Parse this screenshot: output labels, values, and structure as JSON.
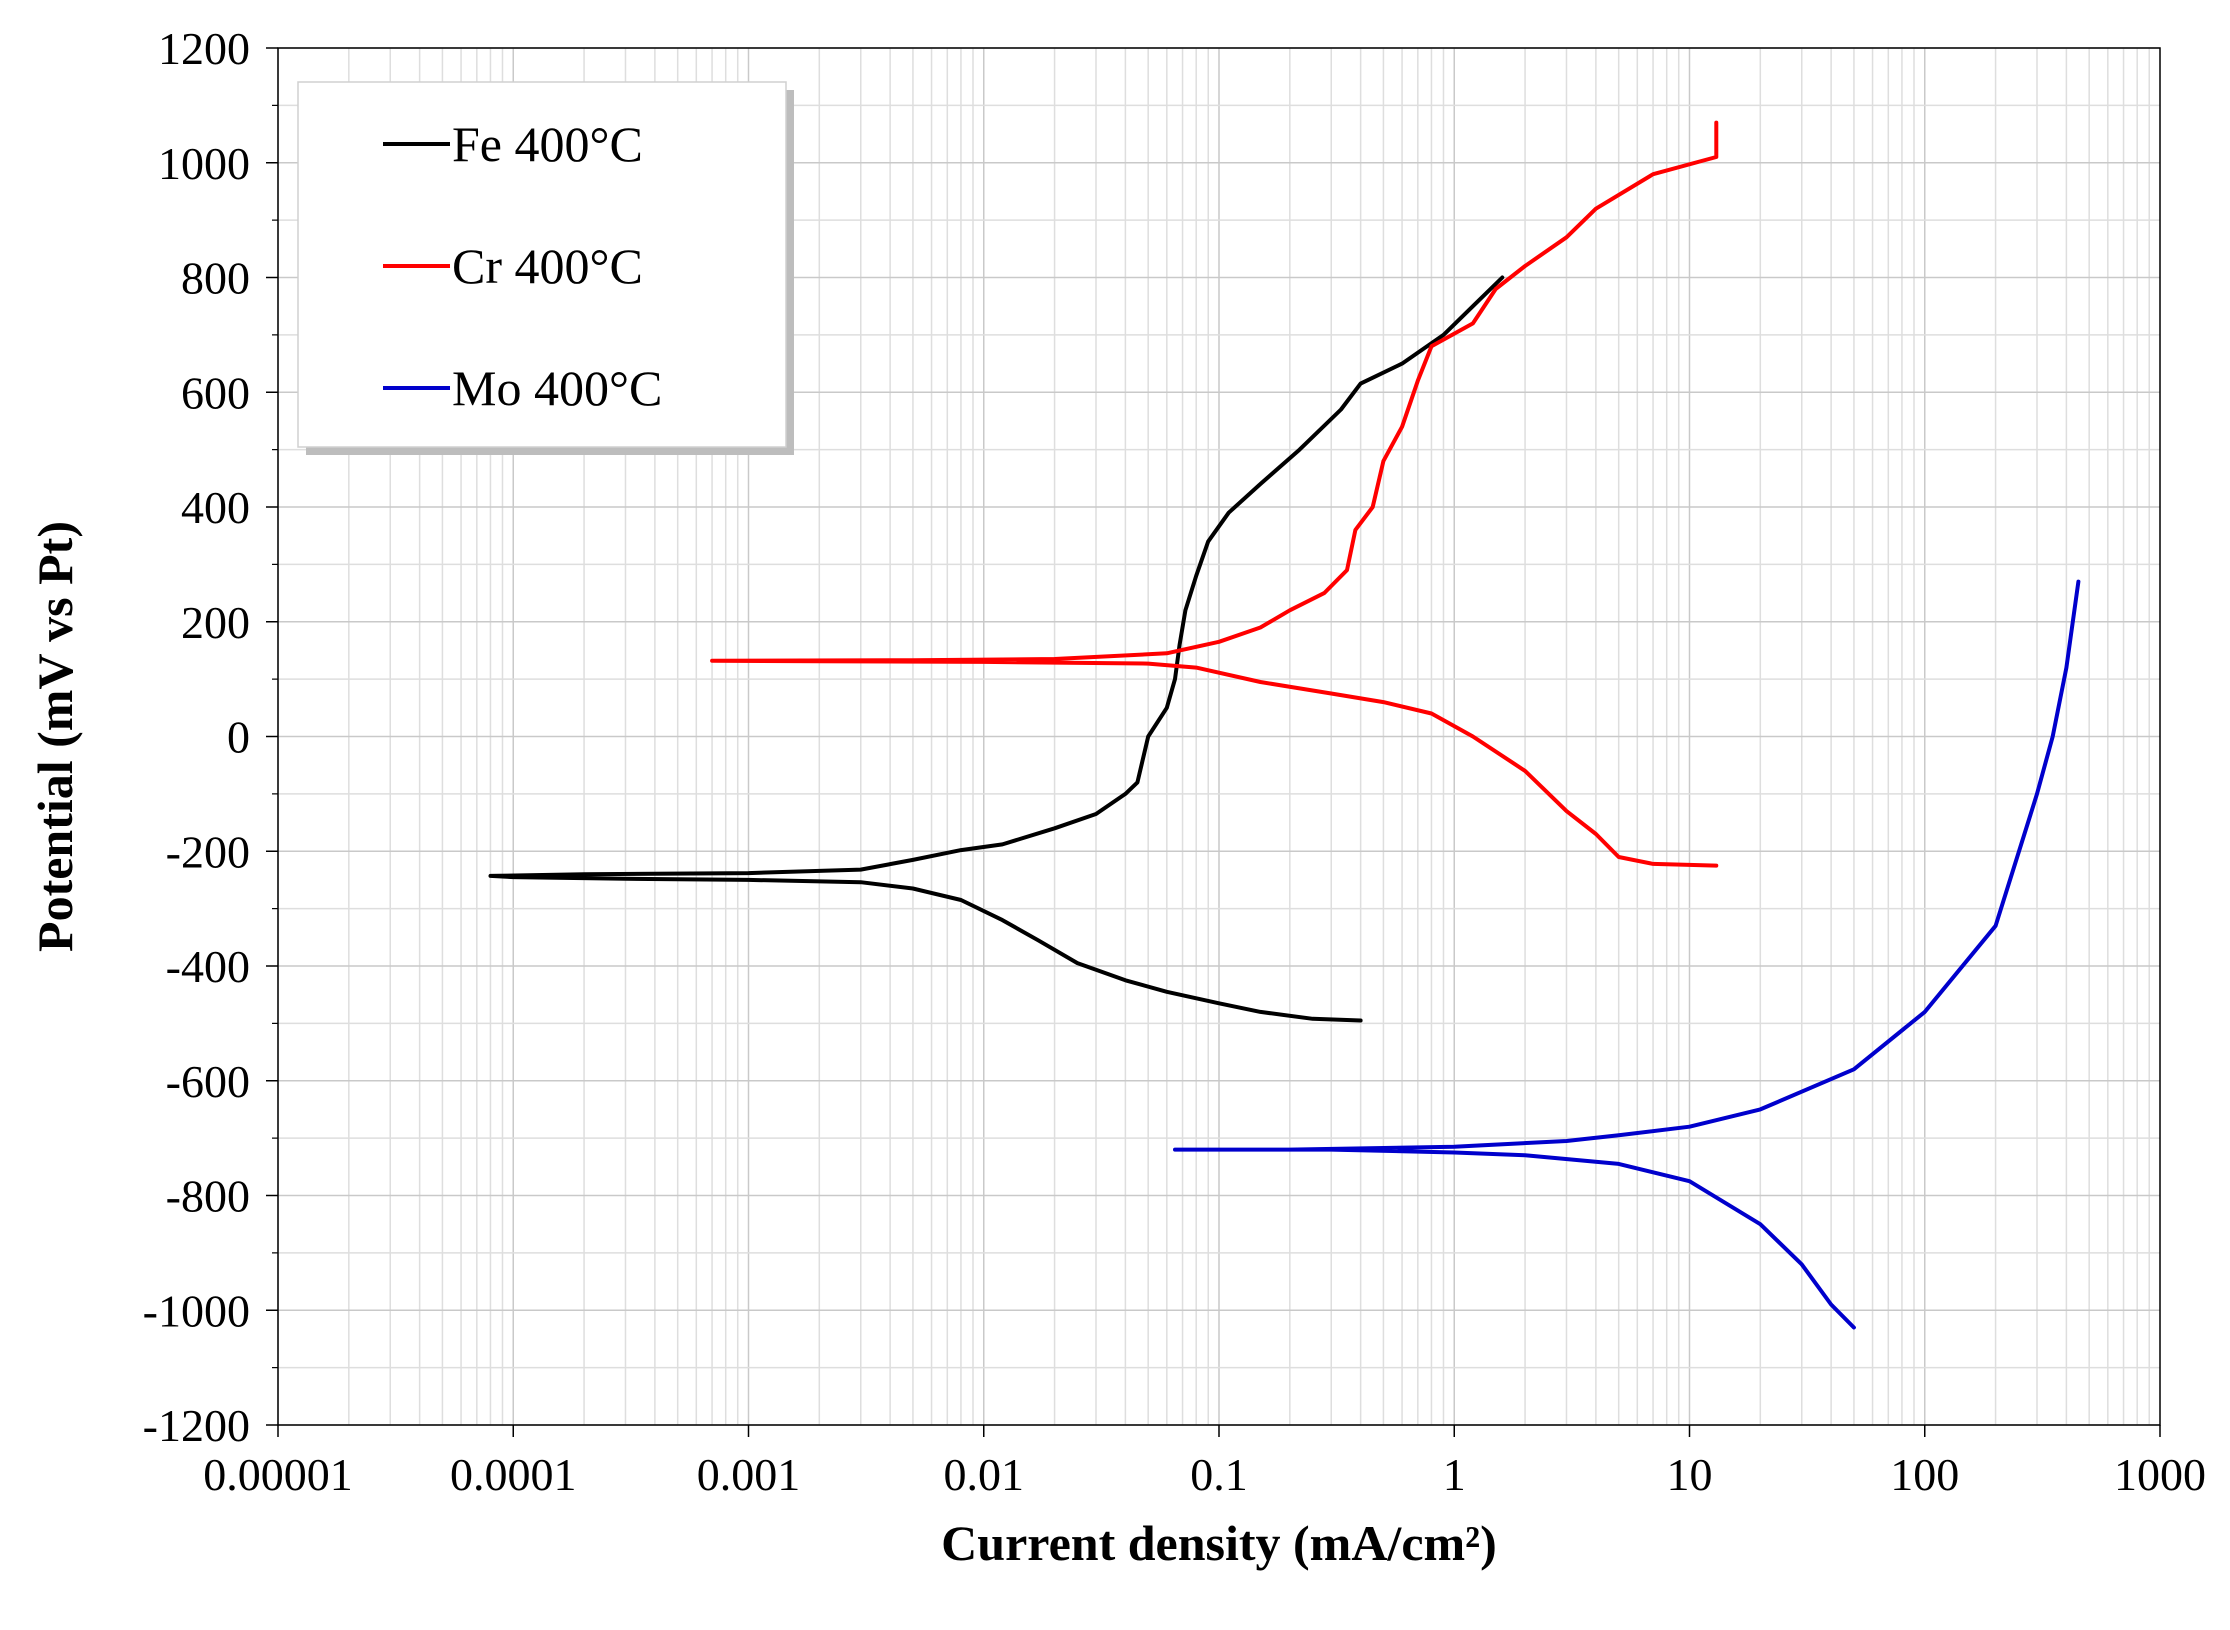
{
  "chart_data": {
    "type": "line",
    "title": "",
    "xlabel": "Current density (mA/cm²)",
    "ylabel": "Potential (mV vs Pt)",
    "x_scale": "log",
    "xlim": [
      1e-05,
      1000
    ],
    "ylim": [
      -1200,
      1200
    ],
    "x_ticks": [
      "0.00001",
      "0.0001",
      "0.001",
      "0.01",
      "0.1",
      "1",
      "10",
      "100",
      "1000"
    ],
    "y_ticks": [
      "-1200",
      "-1000",
      "-800",
      "-600",
      "-400",
      "-200",
      "0",
      "200",
      "400",
      "600",
      "800",
      "1000",
      "1200"
    ],
    "grid": true,
    "legend_position": "top-left",
    "series": [
      {
        "name": "Fe 400°C",
        "color": "#000000",
        "points": [
          [
            0.4,
            -495
          ],
          [
            0.25,
            -492
          ],
          [
            0.15,
            -480
          ],
          [
            0.1,
            -465
          ],
          [
            0.06,
            -445
          ],
          [
            0.04,
            -425
          ],
          [
            0.025,
            -395
          ],
          [
            0.017,
            -355
          ],
          [
            0.012,
            -320
          ],
          [
            0.008,
            -285
          ],
          [
            0.005,
            -265
          ],
          [
            0.003,
            -254
          ],
          [
            0.001,
            -250
          ],
          [
            0.0003,
            -248
          ],
          [
            0.0001,
            -245
          ],
          [
            8e-05,
            -243
          ],
          [
            0.0002,
            -240
          ],
          [
            0.001,
            -238
          ],
          [
            0.003,
            -232
          ],
          [
            0.005,
            -215
          ],
          [
            0.008,
            -198
          ],
          [
            0.012,
            -188
          ],
          [
            0.02,
            -160
          ],
          [
            0.03,
            -135
          ],
          [
            0.04,
            -100
          ],
          [
            0.045,
            -80
          ],
          [
            0.05,
            0
          ],
          [
            0.06,
            50
          ],
          [
            0.065,
            100
          ],
          [
            0.068,
            160
          ],
          [
            0.072,
            220
          ],
          [
            0.08,
            280
          ],
          [
            0.09,
            340
          ],
          [
            0.11,
            390
          ],
          [
            0.15,
            440
          ],
          [
            0.22,
            500
          ],
          [
            0.33,
            570
          ],
          [
            0.4,
            615
          ],
          [
            0.6,
            650
          ],
          [
            0.9,
            700
          ],
          [
            1.2,
            750
          ],
          [
            1.6,
            800
          ]
        ]
      },
      {
        "name": "Cr 400°C",
        "color": "#ff0000",
        "points": [
          [
            13,
            -225
          ],
          [
            7,
            -222
          ],
          [
            5,
            -210
          ],
          [
            4,
            -170
          ],
          [
            3,
            -130
          ],
          [
            2,
            -60
          ],
          [
            1.2,
            0
          ],
          [
            0.8,
            40
          ],
          [
            0.5,
            60
          ],
          [
            0.3,
            75
          ],
          [
            0.15,
            95
          ],
          [
            0.08,
            120
          ],
          [
            0.05,
            127
          ],
          [
            0.01,
            130
          ],
          [
            0.002,
            131
          ],
          [
            0.0007,
            132
          ],
          [
            0.005,
            133
          ],
          [
            0.02,
            135
          ],
          [
            0.06,
            145
          ],
          [
            0.1,
            165
          ],
          [
            0.15,
            190
          ],
          [
            0.2,
            220
          ],
          [
            0.28,
            250
          ],
          [
            0.35,
            290
          ],
          [
            0.38,
            360
          ],
          [
            0.45,
            400
          ],
          [
            0.5,
            480
          ],
          [
            0.6,
            540
          ],
          [
            0.7,
            620
          ],
          [
            0.8,
            680
          ],
          [
            1.2,
            720
          ],
          [
            1.5,
            780
          ],
          [
            2,
            820
          ],
          [
            3,
            870
          ],
          [
            4,
            920
          ],
          [
            7,
            980
          ],
          [
            13,
            1010
          ],
          [
            13,
            1070
          ]
        ]
      },
      {
        "name": "Mo 400°C",
        "color": "#0000cc",
        "points": [
          [
            50,
            -1030
          ],
          [
            40,
            -990
          ],
          [
            30,
            -920
          ],
          [
            20,
            -850
          ],
          [
            10,
            -775
          ],
          [
            5,
            -745
          ],
          [
            2,
            -730
          ],
          [
            1,
            -725
          ],
          [
            0.3,
            -720
          ],
          [
            0.1,
            -720
          ],
          [
            0.065,
            -720
          ],
          [
            0.2,
            -720
          ],
          [
            1,
            -715
          ],
          [
            3,
            -705
          ],
          [
            5,
            -695
          ],
          [
            10,
            -680
          ],
          [
            20,
            -650
          ],
          [
            50,
            -580
          ],
          [
            100,
            -480
          ],
          [
            200,
            -330
          ],
          [
            300,
            -100
          ],
          [
            350,
            0
          ],
          [
            400,
            120
          ],
          [
            450,
            270
          ]
        ]
      }
    ]
  }
}
